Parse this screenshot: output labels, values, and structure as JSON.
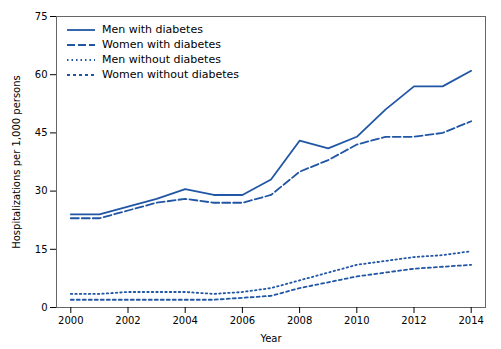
{
  "chart_data": {
    "type": "line",
    "xlabel": "Year",
    "ylabel": "Hospitalizations per 1,000 persons",
    "x": [
      2000,
      2001,
      2002,
      2003,
      2004,
      2005,
      2006,
      2007,
      2008,
      2009,
      2010,
      2011,
      2012,
      2013,
      2014
    ],
    "series": [
      {
        "name": "Men with diabetes",
        "color": "#2156a5",
        "line_style": "solid",
        "values": [
          24,
          24,
          26,
          28,
          30.5,
          29,
          29,
          33,
          43,
          41,
          44,
          51,
          57,
          57,
          61
        ]
      },
      {
        "name": "Women with diabetes",
        "color": "#2156a5",
        "line_style": "long-dash",
        "values": [
          23,
          23,
          25,
          27,
          28,
          27,
          27,
          29,
          35,
          38,
          42,
          44,
          44,
          45,
          48
        ]
      },
      {
        "name": "Men without diabetes",
        "color": "#2156a5",
        "line_style": "dotted",
        "values": [
          3.5,
          3.5,
          4,
          4,
          4,
          3.5,
          4,
          5,
          7,
          9,
          11,
          12,
          13,
          13.5,
          14.5
        ]
      },
      {
        "name": "Women without diabetes",
        "color": "#2156a5",
        "line_style": "short-dash",
        "values": [
          2,
          2,
          2,
          2,
          2,
          2,
          2.5,
          3,
          5,
          6.5,
          8,
          9,
          10,
          10.5,
          11
        ]
      }
    ],
    "xlim": [
      1999.5,
      2014.5
    ],
    "xticks": [
      2000,
      2002,
      2004,
      2006,
      2008,
      2010,
      2012,
      2014
    ],
    "ylim": [
      0,
      75
    ],
    "yticks": [
      0,
      15,
      30,
      45,
      60,
      75
    ],
    "grid": false,
    "legend": "upper left"
  }
}
